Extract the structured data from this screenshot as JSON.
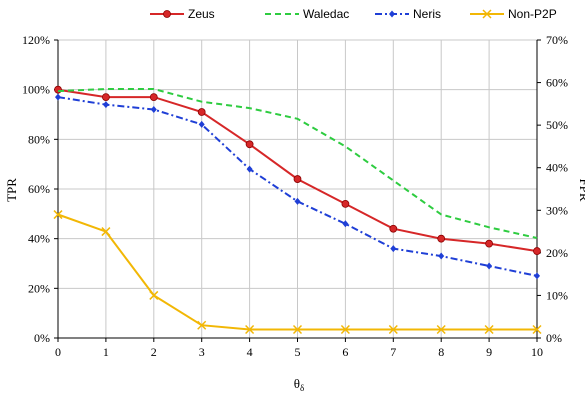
{
  "chart_data": {
    "type": "line",
    "x": [
      0,
      1,
      2,
      3,
      4,
      5,
      6,
      7,
      8,
      9,
      10
    ],
    "xlabel": "θδ",
    "ylabel_left": "TPR",
    "ylabel_right": "FPR",
    "ylim_left": [
      0,
      120
    ],
    "ylim_right": [
      0,
      70
    ],
    "yticks_left": [
      "0%",
      "20%",
      "40%",
      "60%",
      "80%",
      "100%",
      "120%"
    ],
    "yticks_right": [
      "0%",
      "10%",
      "20%",
      "30%",
      "40%",
      "50%",
      "60%",
      "70%"
    ],
    "xticks": [
      "0",
      "1",
      "2",
      "3",
      "4",
      "5",
      "6",
      "7",
      "8",
      "9",
      "10"
    ],
    "grid": true,
    "legend_position": "top",
    "series": [
      {
        "name": "Zeus",
        "axis": "left",
        "color": "#d62728",
        "dash": "",
        "marker": "circle",
        "values": [
          100,
          97,
          97,
          91,
          78,
          64,
          54,
          44,
          40,
          38,
          35
        ]
      },
      {
        "name": "Waledac",
        "axis": "right",
        "color": "#2ecc40",
        "dash": "6,4",
        "marker": "none",
        "values": [
          58,
          58.5,
          58.5,
          55.5,
          54,
          51.5,
          45,
          37,
          29,
          26,
          23.5
        ]
      },
      {
        "name": "Neris",
        "axis": "left",
        "color": "#1f3fd6",
        "dash": "7,3,2,3",
        "marker": "diamond",
        "values": [
          97,
          94,
          92,
          86,
          68,
          55,
          46,
          36,
          33,
          29,
          25
        ]
      },
      {
        "name": "Non-P2P",
        "axis": "right",
        "color": "#f2b705",
        "dash": "",
        "marker": "x",
        "values": [
          29,
          25,
          10,
          3,
          2,
          2,
          2,
          2,
          2,
          2,
          2
        ]
      }
    ]
  }
}
